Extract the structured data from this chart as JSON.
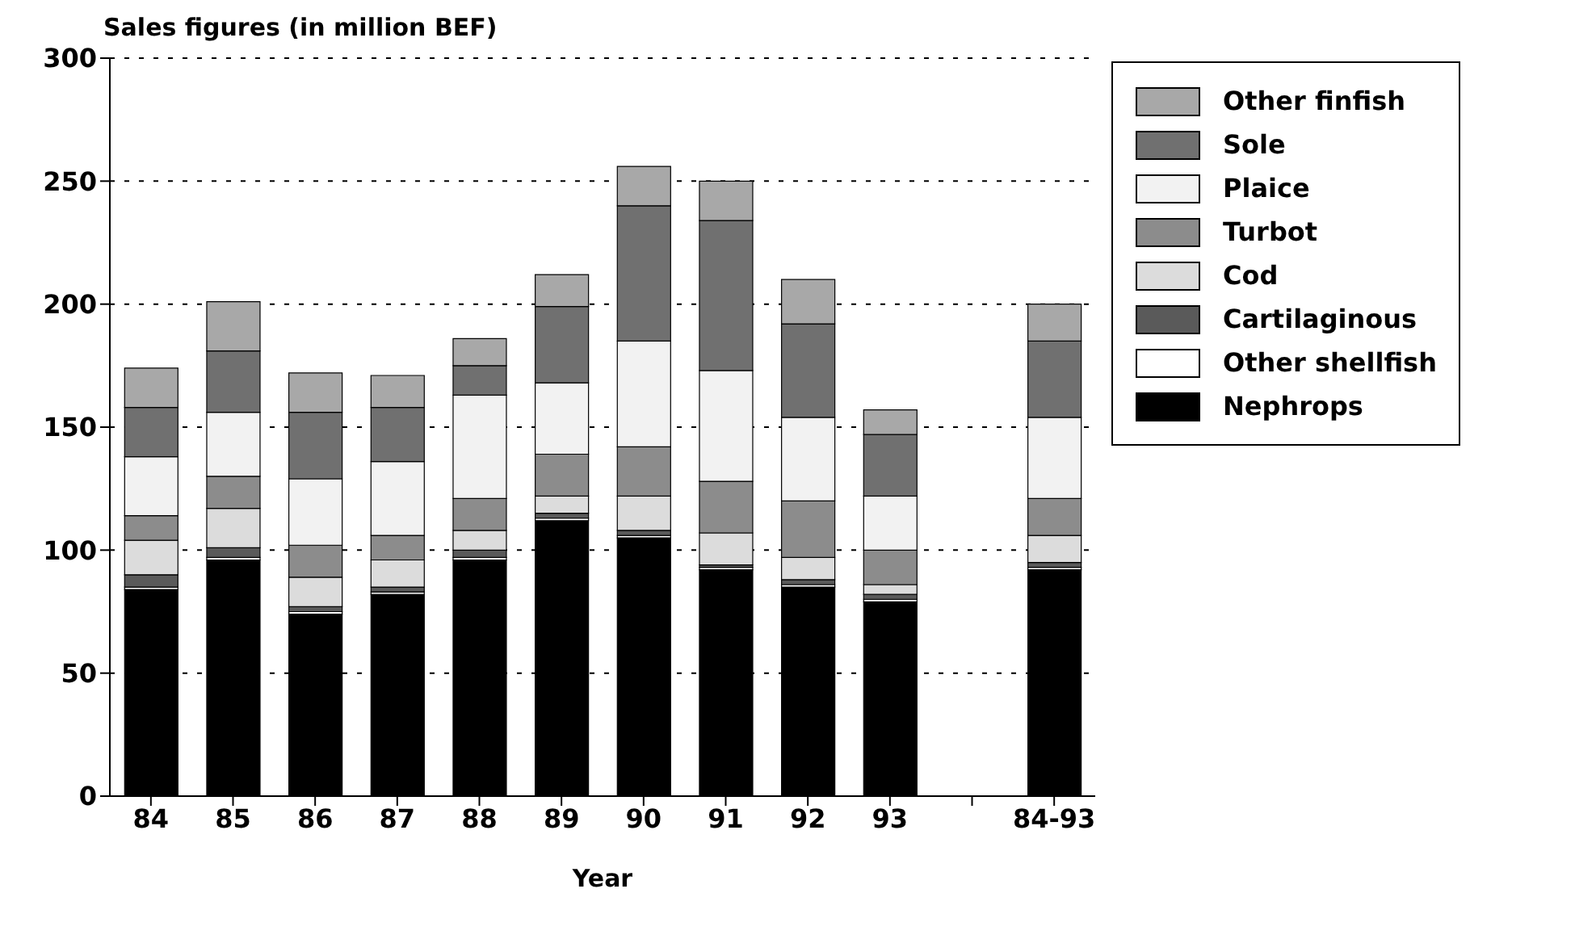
{
  "chart_data": {
    "type": "bar",
    "title": "Sales figures (in million BEF)",
    "xlabel": "Year",
    "stacked": true,
    "categories": [
      "84",
      "85",
      "86",
      "87",
      "88",
      "89",
      "90",
      "91",
      "92",
      "93",
      null,
      "84-93"
    ],
    "series": [
      {
        "name": "Nephrops",
        "color": "#000000",
        "values": [
          84,
          96,
          74,
          82,
          96,
          112,
          105,
          92,
          85,
          79,
          null,
          92
        ]
      },
      {
        "name": "Other shellfish",
        "color": "#ffffff",
        "values": [
          1,
          1,
          1,
          1,
          1,
          1,
          1,
          1,
          1,
          1,
          null,
          1
        ]
      },
      {
        "name": "Cartilaginous",
        "color": "#5a5a5a",
        "values": [
          5,
          4,
          2,
          2,
          3,
          2,
          2,
          1,
          2,
          2,
          null,
          2
        ]
      },
      {
        "name": "Cod",
        "color": "#dcdcdc",
        "values": [
          14,
          16,
          12,
          11,
          8,
          7,
          14,
          13,
          9,
          4,
          null,
          11
        ]
      },
      {
        "name": "Turbot",
        "color": "#8c8c8c",
        "values": [
          10,
          13,
          13,
          10,
          13,
          17,
          20,
          21,
          23,
          14,
          null,
          15
        ]
      },
      {
        "name": "Plaice",
        "color": "#f2f2f2",
        "values": [
          24,
          26,
          27,
          30,
          42,
          29,
          43,
          45,
          34,
          22,
          null,
          33
        ]
      },
      {
        "name": "Sole",
        "color": "#707070",
        "values": [
          20,
          25,
          27,
          22,
          12,
          31,
          55,
          61,
          38,
          25,
          null,
          31
        ]
      },
      {
        "name": "Other finfish",
        "color": "#a8a8a8",
        "values": [
          16,
          20,
          16,
          13,
          11,
          13,
          16,
          16,
          18,
          10,
          null,
          15
        ]
      }
    ],
    "ylim": [
      0,
      300
    ],
    "yticks": [
      0,
      50,
      100,
      150,
      200,
      250,
      300
    ],
    "grid": "y",
    "legend": "top right"
  }
}
